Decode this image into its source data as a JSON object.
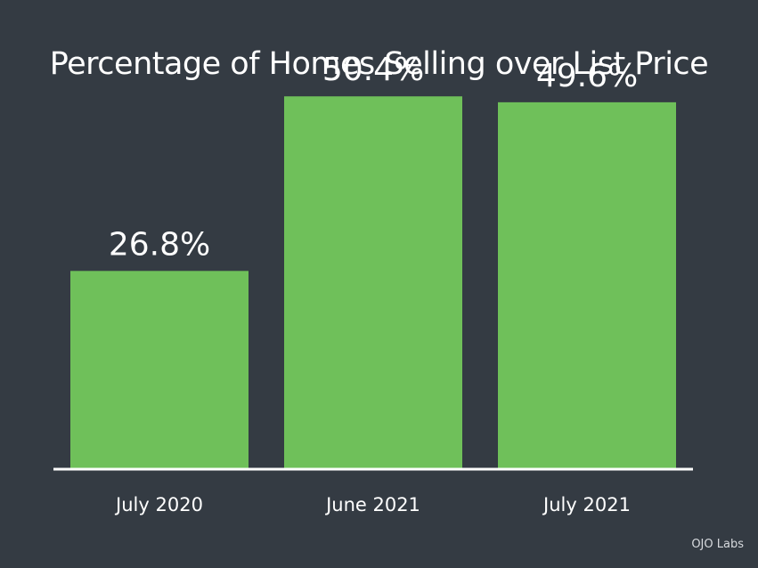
{
  "chart_data": {
    "type": "bar",
    "title": "Percentage of Homes Selling over List Price",
    "categories": [
      "July 2020",
      "June 2021",
      "July 2021"
    ],
    "values": [
      26.8,
      50.4,
      49.6
    ],
    "value_labels": [
      "26.8%",
      "50.4%",
      "49.6%"
    ],
    "xlabel": "",
    "ylabel": "",
    "ylim": [
      0,
      55
    ],
    "grid": false,
    "legend": "none",
    "bar_color": "#6fc05a",
    "background_color": "#343b43",
    "text_color": "#ffffff"
  },
  "source": "OJO Labs"
}
